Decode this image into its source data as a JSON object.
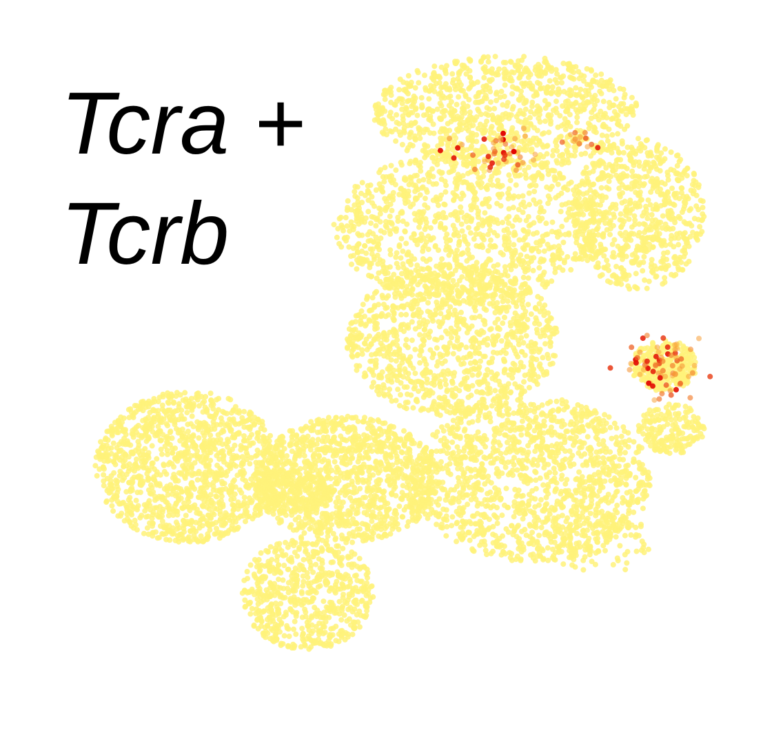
{
  "chart_data": {
    "type": "scatter",
    "title_lines": [
      "Tcra +",
      "Tcrb"
    ],
    "xlabel": "",
    "ylabel": "",
    "axes_visible": false,
    "grid": false,
    "legend": "none",
    "color_scale": {
      "low": "#fff27a",
      "mid": "#f7a43c",
      "high": "#e00000"
    },
    "embedding_regions": [
      {
        "cx": 0.18,
        "cy": 0.34,
        "rx": 0.14,
        "ry": 0.12,
        "weight": 0.14
      },
      {
        "cx": 0.42,
        "cy": 0.32,
        "rx": 0.14,
        "ry": 0.1,
        "weight": 0.13
      },
      {
        "cx": 0.36,
        "cy": 0.14,
        "rx": 0.1,
        "ry": 0.09,
        "weight": 0.07
      },
      {
        "cx": 0.7,
        "cy": 0.32,
        "rx": 0.18,
        "ry": 0.13,
        "weight": 0.15
      },
      {
        "cx": 0.58,
        "cy": 0.54,
        "rx": 0.16,
        "ry": 0.12,
        "weight": 0.12
      },
      {
        "cx": 0.6,
        "cy": 0.72,
        "rx": 0.2,
        "ry": 0.12,
        "weight": 0.12
      },
      {
        "cx": 0.66,
        "cy": 0.9,
        "rx": 0.2,
        "ry": 0.09,
        "weight": 0.11
      },
      {
        "cx": 0.86,
        "cy": 0.74,
        "rx": 0.1,
        "ry": 0.12,
        "weight": 0.08
      },
      {
        "cx": 0.9,
        "cy": 0.5,
        "rx": 0.05,
        "ry": 0.04,
        "weight": 0.03
      },
      {
        "cx": 0.91,
        "cy": 0.4,
        "rx": 0.05,
        "ry": 0.04,
        "weight": 0.02
      },
      {
        "cx": 0.34,
        "cy": 0.3,
        "rx": 0.06,
        "ry": 0.03,
        "weight": 0.02
      },
      {
        "cx": 0.8,
        "cy": 0.22,
        "rx": 0.08,
        "ry": 0.05,
        "weight": 0.01
      }
    ],
    "high_expression_clusters": [
      {
        "cx": 0.9,
        "cy": 0.5,
        "rx": 0.05,
        "ry": 0.05,
        "count": 70
      },
      {
        "cx": 0.65,
        "cy": 0.84,
        "rx": 0.08,
        "ry": 0.03,
        "count": 45
      },
      {
        "cx": 0.78,
        "cy": 0.86,
        "rx": 0.03,
        "ry": 0.02,
        "count": 12
      }
    ],
    "point_count": 9000
  }
}
